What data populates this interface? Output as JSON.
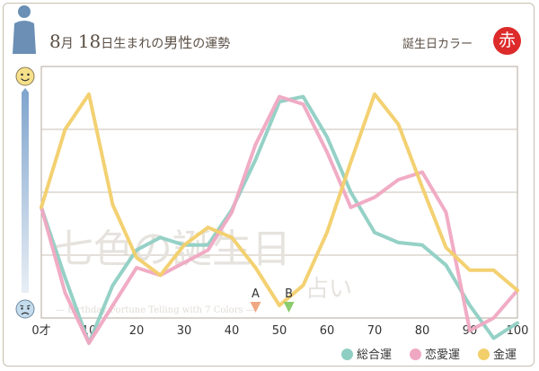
{
  "header": {
    "title_month": "8",
    "title_month_unit": "月",
    "title_day": "18",
    "title_day_unit": "日生まれの",
    "title_subject": "男性",
    "title_tail": "の運勢",
    "birth_color_label": "誕生日カラー",
    "birth_color_value": "赤",
    "birth_color_hex": "#dd2b2b"
  },
  "icons": {
    "top": "smiling-face-icon",
    "bottom": "worried-face-icon",
    "person": "person-silhouette-icon"
  },
  "watermark": {
    "line1": "七色の誕生日",
    "line2": "占い",
    "subtitle": "— Birthday Fortune Telling with 7 Colors —"
  },
  "markers": [
    {
      "label": "A",
      "x": 45,
      "color": "#f0a882"
    },
    {
      "label": "B",
      "x": 52,
      "color": "#8ccc6e"
    }
  ],
  "chart_data": {
    "type": "line",
    "x_tick_labels": [
      "0才",
      "10",
      "20",
      "30",
      "40",
      "50",
      "60",
      "70",
      "80",
      "90",
      "100"
    ],
    "x_ticks": [
      0,
      10,
      20,
      30,
      40,
      50,
      60,
      70,
      80,
      90,
      100
    ],
    "xlim": [
      0,
      100
    ],
    "ylim": [
      0,
      100
    ],
    "grid": true,
    "legend_position": "bottom-right",
    "series": [
      {
        "name": "総合運",
        "color": "#8fcfc3",
        "x": [
          0,
          5,
          10,
          15,
          20,
          25,
          30,
          35,
          40,
          45,
          50,
          55,
          60,
          65,
          70,
          75,
          80,
          85,
          90,
          95,
          100
        ],
        "y": [
          44,
          16,
          -10,
          13,
          27,
          32,
          29,
          29,
          43,
          63,
          86,
          88,
          72,
          50,
          34,
          30,
          29,
          21,
          5,
          -8,
          -2
        ]
      },
      {
        "name": "恋愛運",
        "color": "#f0a8c2",
        "x": [
          0,
          5,
          10,
          15,
          20,
          25,
          30,
          35,
          40,
          45,
          50,
          55,
          60,
          65,
          70,
          75,
          80,
          85,
          90,
          95,
          100
        ],
        "y": [
          44,
          10,
          -10,
          5,
          20,
          17,
          22,
          27,
          42,
          69,
          88,
          85,
          66,
          44,
          48,
          55,
          58,
          42,
          -5,
          0,
          11
        ]
      },
      {
        "name": "金運",
        "color": "#f2cf6a",
        "x": [
          0,
          5,
          10,
          15,
          20,
          25,
          30,
          35,
          40,
          45,
          50,
          55,
          60,
          65,
          70,
          75,
          80,
          85,
          90,
          95,
          100
        ],
        "y": [
          44,
          75,
          89,
          45,
          24,
          17,
          29,
          36,
          32,
          20,
          5,
          13,
          34,
          62,
          89,
          77,
          52,
          28,
          19,
          19,
          11
        ]
      }
    ]
  }
}
